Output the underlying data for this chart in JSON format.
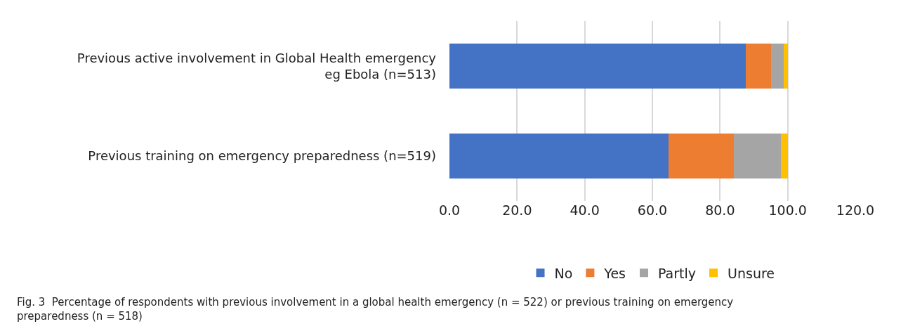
{
  "chart_data": {
    "type": "bar",
    "orientation": "horizontal",
    "stacked": true,
    "categories": [
      "Previous active involvement in Global Health emergency\neg Ebola (n=513)",
      "Previous training on emergency preparedness (n=519)"
    ],
    "series": [
      {
        "name": "No",
        "color": "#4472c4",
        "values": [
          87.6,
          64.7
        ]
      },
      {
        "name": "Yes",
        "color": "#ed7d31",
        "values": [
          7.4,
          19.3
        ]
      },
      {
        "name": "Partly",
        "color": "#a5a5a5",
        "values": [
          3.9,
          13.9
        ]
      },
      {
        "name": "Unsure",
        "color": "#ffc000",
        "values": [
          1.1,
          2.1
        ]
      }
    ],
    "xlim": [
      0,
      120
    ],
    "xticks": [
      {
        "value": 0,
        "label": "0.0"
      },
      {
        "value": 20,
        "label": "20.0"
      },
      {
        "value": 40,
        "label": "40.0"
      },
      {
        "value": 60,
        "label": "60.0"
      },
      {
        "value": 80,
        "label": "80.0"
      },
      {
        "value": 100,
        "label": "100.0"
      },
      {
        "value": 120,
        "label": "120.0"
      }
    ],
    "grid": "x",
    "legend": "bottom",
    "annotations": [
      "Fig. 3  Percentage of respondents with previous involvement in a global health emergency (n = 522) or previous training on emergency\npreparedness (n = 518)"
    ]
  }
}
